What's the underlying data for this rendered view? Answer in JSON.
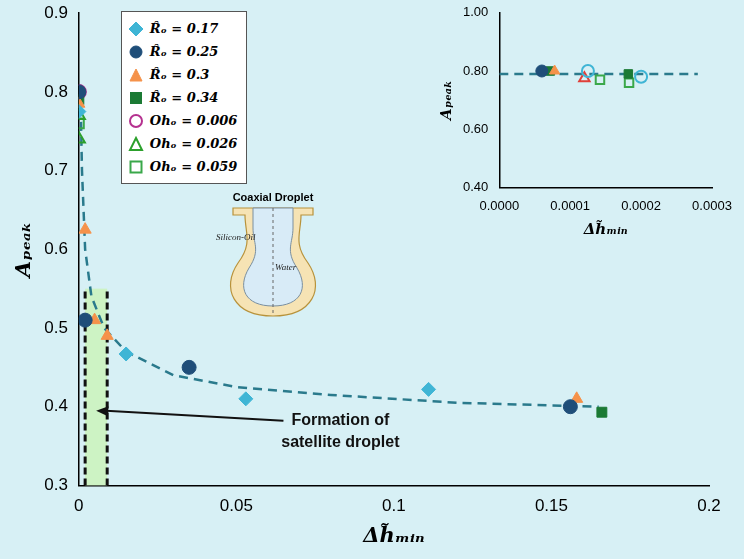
{
  "chart_data": [
    {
      "type": "scatter",
      "x_label": "Δh̃ₘᵢₙ",
      "y_label": "Aₚₑₐₖ",
      "xlim": [
        0,
        0.2
      ],
      "xticks": [
        0,
        0.05,
        0.1,
        0.15,
        0.2
      ],
      "ylim": [
        0.3,
        0.9
      ],
      "yticks": [
        0.3,
        0.4,
        0.5,
        0.6,
        0.7,
        0.8,
        0.9
      ],
      "grid": false,
      "legend": "upper left",
      "series": [
        {
          "name": "R̂ₒ = 0.17",
          "color": "#3fb5d5",
          "marker": "diamond",
          "x": [
            0,
            0.015,
            0.053,
            0.111
          ],
          "values": [
            0.775,
            0.467,
            0.41,
            0.422
          ]
        },
        {
          "name": "R̂ₒ = 0.25",
          "color": "#1f4e79",
          "marker": "circle",
          "x": [
            0,
            0.002,
            0.035,
            0.156
          ],
          "values": [
            0.8,
            0.51,
            0.45,
            0.4
          ]
        },
        {
          "name": "R̂ₒ = 0.3",
          "color": "#f5924a",
          "marker": "triangle",
          "x": [
            0,
            0.002,
            0.005,
            0.009,
            0.158
          ],
          "values": [
            0.785,
            0.625,
            0.51,
            0.49,
            0.41
          ]
        },
        {
          "name": "R̂ₒ = 0.34",
          "color": "#1b7a34",
          "marker": "square",
          "x": [
            0,
            0.166
          ],
          "values": [
            0.79,
            0.393
          ]
        },
        {
          "name": "Ohₒ = 0.006",
          "color": "#b5318f",
          "marker": "circle-open",
          "x": [
            0
          ],
          "values": [
            0.8
          ]
        },
        {
          "name": "Ohₒ = 0.026",
          "color": "#2ca02c",
          "marker": "triangle-open",
          "x": [
            0,
            0
          ],
          "values": [
            0.74,
            0.77
          ]
        },
        {
          "name": "Ohₒ = 0.059",
          "color": "#3aa84a",
          "marker": "square-open",
          "x": [
            0
          ],
          "values": [
            0.76
          ]
        },
        {
          "type": "line",
          "color": "#2a7a8c",
          "marker": "none",
          "line_style": "dashed",
          "x": [
            0.0005,
            0.001,
            0.002,
            0.004,
            0.008,
            0.015,
            0.03,
            0.05,
            0.08,
            0.12,
            0.165
          ],
          "values": [
            0.8,
            0.7,
            0.6,
            0.54,
            0.5,
            0.47,
            0.44,
            0.425,
            0.415,
            0.405,
            0.4
          ]
        }
      ],
      "annotation": {
        "text": "Formation of satellite droplet",
        "x": [
          0.002,
          0.009
        ],
        "y": [
          0.3,
          0.55
        ]
      }
    },
    {
      "type": "scatter",
      "x_label": "Δh̃ₘᵢₙ",
      "y_label": "Aₚₑₐₖ",
      "xlim": [
        0,
        0.0003
      ],
      "xticks": [
        {
          "value": 0,
          "label": "0.0000"
        },
        {
          "value": 0.0001,
          "label": "0.0001"
        },
        {
          "value": 0.0002,
          "label": "0.0002"
        },
        {
          "value": 0.0003,
          "label": "0.0003"
        }
      ],
      "ylim": [
        0.4,
        1.0
      ],
      "yticks": [
        {
          "value": 0.4,
          "label": "0.40"
        },
        {
          "value": 0.6,
          "label": "0.60"
        },
        {
          "value": 0.8,
          "label": "0.80"
        },
        {
          "value": 1.0,
          "label": "1.00"
        }
      ],
      "grid": false,
      "series": [
        {
          "color": "#1f4e79",
          "marker": "circle",
          "x": [
            6e-05
          ],
          "values": [
            0.8
          ]
        },
        {
          "color": "#f5924a",
          "marker": "triangle",
          "x": [
            7.8e-05
          ],
          "values": [
            0.8
          ]
        },
        {
          "color": "#1b7a34",
          "marker": "square",
          "x": [
            7.2e-05,
            0.000182
          ],
          "values": [
            0.8,
            0.79
          ]
        },
        {
          "color": "#3fb5d5",
          "marker": "circle-open",
          "x": [
            0.000125,
            0.0002
          ],
          "values": [
            0.8,
            0.78
          ]
        },
        {
          "color": "#e0403a",
          "marker": "triangle-open",
          "x": [
            0.00012
          ],
          "values": [
            0.775
          ]
        },
        {
          "color": "#3aa84a",
          "marker": "square-open",
          "x": [
            0.000142,
            0.000183
          ],
          "values": [
            0.77,
            0.76
          ]
        },
        {
          "type": "line",
          "color": "#2a7a8c",
          "marker": "none",
          "line_style": "dashed",
          "x": [
            0,
            0.00028
          ],
          "values": [
            0.79,
            0.79
          ]
        }
      ]
    }
  ],
  "diagram": {
    "title": "Coaxial Droplet",
    "outer": "Silicon-Oil",
    "inner": "Water"
  }
}
